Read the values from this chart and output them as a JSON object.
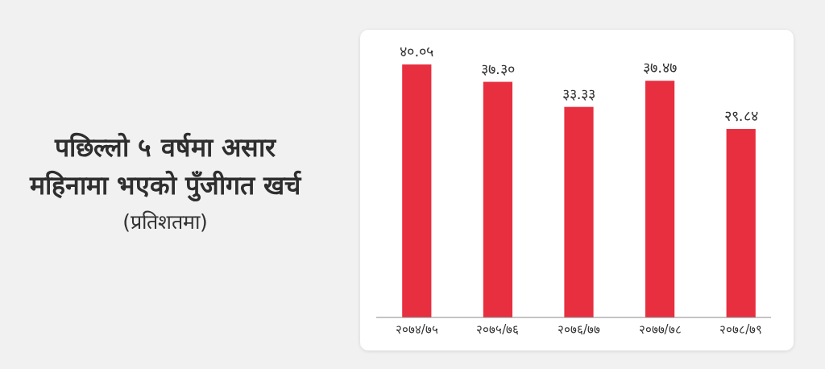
{
  "chart_data": {
    "type": "bar",
    "title": "पछिल्लो ५ वर्षमा असार महिनामा भएको पुँजीगत खर्च",
    "subtitle": "(प्रतिशतमा)",
    "categories": [
      "२०७४/७५",
      "२०७५/७६",
      "२०७६/७७",
      "२०७७/७८",
      "२०७८/७९"
    ],
    "values": [
      40.05,
      37.3,
      33.33,
      37.47,
      29.84
    ],
    "value_labels": [
      "४०.०५",
      "३७.३०",
      "३३.३३",
      "३७.४७",
      "२९.८४"
    ],
    "color": "#e72f3f"
  }
}
